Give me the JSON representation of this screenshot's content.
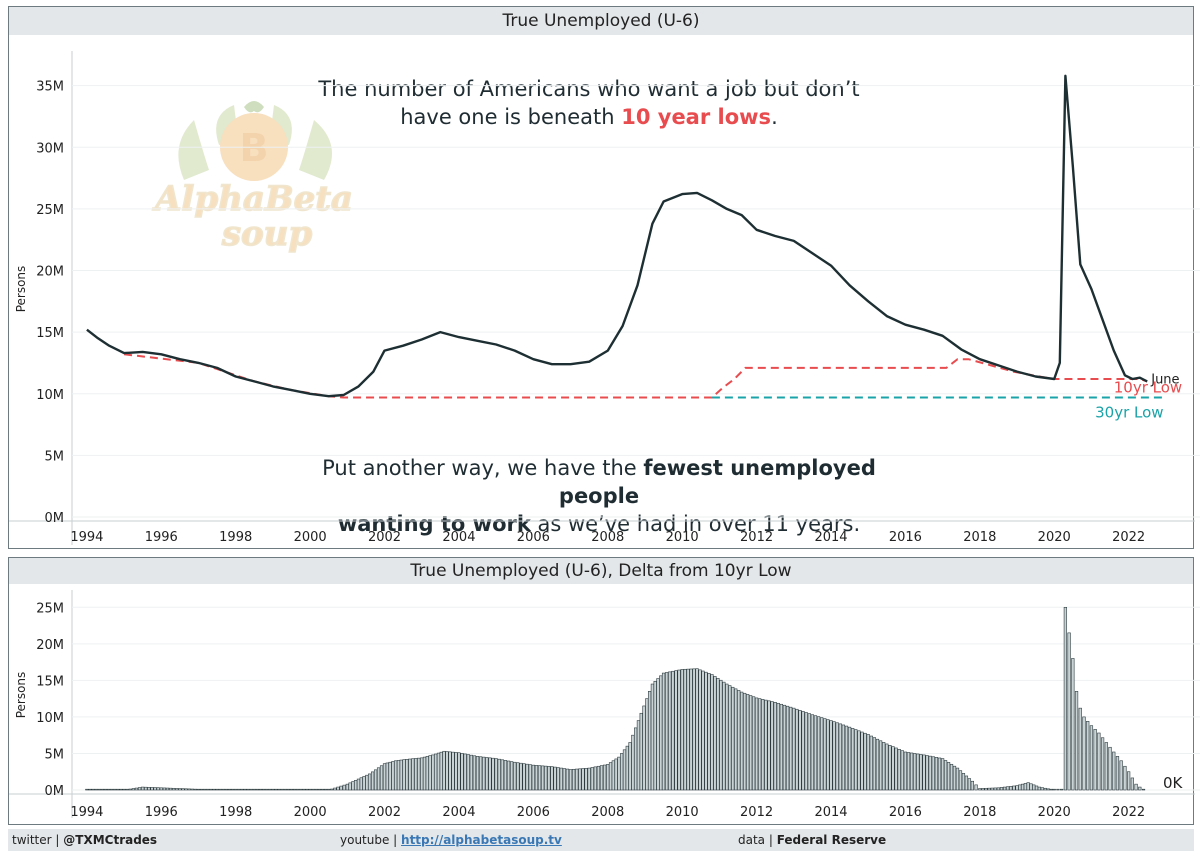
{
  "colors": {
    "line": "#1e2f33",
    "low10": "#e84c4f",
    "low30": "#1aa3a8",
    "bars_fill": "#c9d3d6",
    "bars_stroke": "#2c3a3e"
  },
  "top": {
    "title": "True Unemployed (U-6)",
    "headline_line1": "The number of Americans who want a job but don’t",
    "headline_line2_pre": "have one is beneath ",
    "headline_line2_highlight": "10 year lows",
    "headline_line2_post": ".",
    "subtext_line1_pre": "Put another way, we have the ",
    "subtext_line1_bold": "fewest unemployed people",
    "subtext_line2_bold": "wanting to work",
    "subtext_line2_post": " as we’ve had in over 11 years.",
    "watermark_text_1": "AlphaBeta",
    "watermark_text_2": "soup",
    "watermark_symbol": "B"
  },
  "bottom": {
    "title": "True Unemployed (U-6), Delta from 10yr Low"
  },
  "footer": {
    "twitter_label": "twitter | ",
    "twitter_handle": "@TXMCtrades",
    "youtube_label": "youtube | ",
    "youtube_link": "http://alphabetasoup.tv",
    "data_label": "data | ",
    "data_source": "Federal Reserve"
  },
  "chart_data": [
    {
      "type": "line",
      "title": "True Unemployed (U-6)",
      "ylabel": "Persons",
      "xlabel": "",
      "xlim": [
        1993.6,
        2023.3
      ],
      "ylim": [
        0,
        37
      ],
      "x_ticks": [
        "1994",
        "1996",
        "1998",
        "2000",
        "2002",
        "2004",
        "2006",
        "2008",
        "2010",
        "2012",
        "2014",
        "2016",
        "2018",
        "2020",
        "2022"
      ],
      "y_ticks": [
        "0M",
        "5M",
        "10M",
        "15M",
        "20M",
        "25M",
        "30M",
        "35M"
      ],
      "y_tick_values": [
        0,
        5,
        10,
        15,
        20,
        25,
        30,
        35
      ],
      "series": [
        {
          "name": "True Unemployed (U-6)",
          "x": [
            1994.0,
            1994.3,
            1994.6,
            1995.0,
            1995.5,
            1996.0,
            1996.5,
            1997.0,
            1997.5,
            1998.0,
            1998.5,
            1999.0,
            1999.5,
            2000.0,
            2000.5,
            2000.9,
            2001.3,
            2001.7,
            2002.0,
            2002.5,
            2003.0,
            2003.5,
            2004.0,
            2004.5,
            2005.0,
            2005.5,
            2006.0,
            2006.5,
            2007.0,
            2007.5,
            2008.0,
            2008.4,
            2008.8,
            2009.2,
            2009.5,
            2010.0,
            2010.4,
            2010.8,
            2011.2,
            2011.6,
            2012.0,
            2012.5,
            2013.0,
            2013.5,
            2014.0,
            2014.5,
            2015.0,
            2015.5,
            2016.0,
            2016.5,
            2017.0,
            2017.5,
            2018.0,
            2018.5,
            2019.0,
            2019.5,
            2020.0,
            2020.15,
            2020.3,
            2020.5,
            2020.7,
            2021.0,
            2021.3,
            2021.6,
            2021.9,
            2022.1,
            2022.3,
            2022.5
          ],
          "values": [
            15.2,
            14.5,
            13.9,
            13.3,
            13.4,
            13.2,
            12.8,
            12.5,
            12.1,
            11.4,
            11.0,
            10.6,
            10.3,
            10.0,
            9.8,
            9.9,
            10.6,
            11.8,
            13.5,
            13.9,
            14.4,
            15.0,
            14.6,
            14.3,
            14.0,
            13.5,
            12.8,
            12.4,
            12.4,
            12.6,
            13.5,
            15.5,
            18.8,
            23.8,
            25.6,
            26.2,
            26.3,
            25.7,
            25.0,
            24.5,
            23.3,
            22.8,
            22.4,
            21.4,
            20.4,
            18.8,
            17.5,
            16.3,
            15.6,
            15.2,
            14.7,
            13.6,
            12.8,
            12.3,
            11.8,
            11.4,
            11.2,
            12.5,
            35.8,
            28.5,
            20.5,
            18.5,
            16.0,
            13.5,
            11.5,
            11.2,
            11.3,
            11.0
          ],
          "end_label": "June"
        },
        {
          "name": "10yr Low",
          "x": [
            1995.0,
            1997.0,
            1998.5,
            1999.5,
            2000.5,
            2000.9,
            2010.8,
            2011.1,
            2011.4,
            2011.7,
            2017.1,
            2017.4,
            2017.7,
            2018.3,
            2018.9,
            2019.6,
            2020.0,
            2022.3,
            2022.5
          ],
          "values": [
            13.2,
            12.5,
            11.0,
            10.3,
            9.8,
            9.7,
            9.7,
            10.5,
            11.2,
            12.1,
            12.1,
            12.8,
            12.8,
            12.3,
            11.8,
            11.4,
            11.2,
            11.2,
            11.0
          ],
          "end_label": "10yr Low"
        },
        {
          "name": "30yr Low",
          "x": [
            2010.8,
            2023.0
          ],
          "values": [
            9.7,
            9.7
          ],
          "end_label": "30yr Low"
        }
      ]
    },
    {
      "type": "bar",
      "title": "True Unemployed (U-6), Delta from 10yr Low",
      "ylabel": "Persons",
      "xlim": [
        1993.6,
        2023.3
      ],
      "ylim": [
        0,
        26
      ],
      "x_ticks": [
        "1994",
        "1996",
        "1998",
        "2000",
        "2002",
        "2004",
        "2006",
        "2008",
        "2010",
        "2012",
        "2014",
        "2016",
        "2018",
        "2020",
        "2022"
      ],
      "y_ticks": [
        "0M",
        "5M",
        "10M",
        "15M",
        "20M",
        "25M"
      ],
      "y_tick_values": [
        0,
        5,
        10,
        15,
        20,
        25
      ],
      "x": [
        1994.0,
        1995.0,
        1995.5,
        1996.0,
        1996.5,
        1997.0,
        1997.5,
        1998.0,
        1998.5,
        1999.0,
        1999.5,
        2000.0,
        2000.5,
        2001.0,
        2001.3,
        2001.6,
        2002.0,
        2002.3,
        2002.6,
        2003.0,
        2003.3,
        2003.6,
        2004.0,
        2004.5,
        2005.0,
        2005.5,
        2006.0,
        2006.5,
        2007.0,
        2007.5,
        2008.0,
        2008.3,
        2008.6,
        2008.9,
        2009.2,
        2009.5,
        2010.0,
        2010.4,
        2010.8,
        2011.2,
        2011.6,
        2012.0,
        2012.5,
        2013.0,
        2013.5,
        2014.0,
        2014.5,
        2015.0,
        2015.5,
        2016.0,
        2016.5,
        2017.0,
        2017.4,
        2017.8,
        2018.0,
        2018.5,
        2019.0,
        2019.3,
        2019.6,
        2020.0,
        2020.2,
        2020.3,
        2020.4,
        2020.5,
        2020.6,
        2020.7,
        2020.8,
        2021.0,
        2021.2,
        2021.4,
        2021.6,
        2021.8,
        2022.0,
        2022.2,
        2022.4
      ],
      "values": [
        0.1,
        0.0,
        0.4,
        0.3,
        0.2,
        0.1,
        0.1,
        0.0,
        0.1,
        0.1,
        0.0,
        0.0,
        0.0,
        0.8,
        1.5,
        2.2,
        3.6,
        4.0,
        4.2,
        4.4,
        4.8,
        5.3,
        5.1,
        4.6,
        4.3,
        3.8,
        3.4,
        3.2,
        2.8,
        3.0,
        3.5,
        4.5,
        6.5,
        10.5,
        14.5,
        16.0,
        16.5,
        16.6,
        15.8,
        14.5,
        13.4,
        12.6,
        12.0,
        11.2,
        10.3,
        9.5,
        8.6,
        7.6,
        6.3,
        5.2,
        4.8,
        4.3,
        3.0,
        1.2,
        0.2,
        0.3,
        0.6,
        1.0,
        0.4,
        0.0,
        0.1,
        25.0,
        21.5,
        18.0,
        13.5,
        11.2,
        10.0,
        8.8,
        7.8,
        6.5,
        5.2,
        4.0,
        2.5,
        0.8,
        0.0
      ],
      "end_label": "0K"
    }
  ]
}
